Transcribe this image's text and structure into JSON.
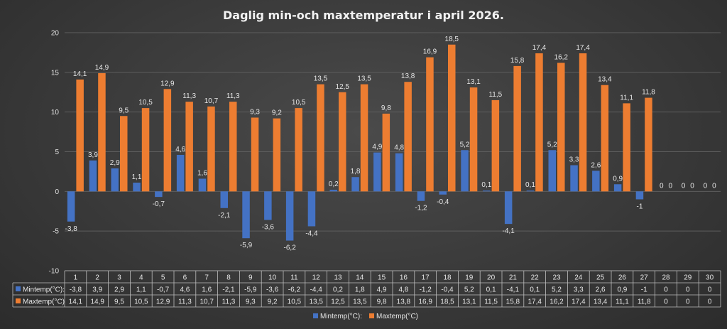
{
  "chart_data": {
    "type": "bar",
    "title": "Daglig min-och maxtemperatur i april 2026.",
    "categories": [
      "1",
      "2",
      "3",
      "4",
      "5",
      "6",
      "7",
      "8",
      "9",
      "10",
      "11",
      "12",
      "13",
      "14",
      "15",
      "16",
      "17",
      "18",
      "19",
      "20",
      "21",
      "22",
      "23",
      "24",
      "25",
      "26",
      "27",
      "28",
      "29",
      "30"
    ],
    "series": [
      {
        "name": "Mintemp(°C):",
        "color": "#4472c4",
        "values": [
          -3.8,
          3.9,
          2.9,
          1.1,
          -0.7,
          4.6,
          1.6,
          -2.1,
          -5.9,
          -3.6,
          -6.2,
          -4.4,
          0.2,
          1.8,
          4.9,
          4.8,
          -1.2,
          -0.4,
          5.2,
          0.1,
          -4.1,
          0.1,
          5.2,
          3.3,
          2.6,
          0.9,
          -1,
          0,
          0,
          0
        ],
        "labels": [
          "-3,8",
          "3,9",
          "2,9",
          "1,1",
          "-0,7",
          "4,6",
          "1,6",
          "-2,1",
          "-5,9",
          "-3,6",
          "-6,2",
          "-4,4",
          "0,2",
          "1,8",
          "4,9",
          "4,8",
          "-1,2",
          "-0,4",
          "5,2",
          "0,1",
          "-4,1",
          "0,1",
          "5,2",
          "3,3",
          "2,6",
          "0,9",
          "-1",
          "0",
          "0",
          "0"
        ]
      },
      {
        "name": "Maxtemp(°C)",
        "color": "#ed7d31",
        "values": [
          14.1,
          14.9,
          9.5,
          10.5,
          12.9,
          11.3,
          10.7,
          11.3,
          9.3,
          9.2,
          10.5,
          13.5,
          12.5,
          13.5,
          9.8,
          13.8,
          16.9,
          18.5,
          13.1,
          11.5,
          15.8,
          17.4,
          16.2,
          17.4,
          13.4,
          11.1,
          11.8,
          0,
          0,
          0
        ],
        "labels": [
          "14,1",
          "14,9",
          "9,5",
          "10,5",
          "12,9",
          "11,3",
          "10,7",
          "11,3",
          "9,3",
          "9,2",
          "10,5",
          "13,5",
          "12,5",
          "13,5",
          "9,8",
          "13,8",
          "16,9",
          "18,5",
          "13,1",
          "11,5",
          "15,8",
          "17,4",
          "16,2",
          "17,4",
          "13,4",
          "11,1",
          "11,8",
          "0",
          "0",
          "0"
        ]
      }
    ],
    "yticks": [
      "-10",
      "-5",
      "0",
      "5",
      "10",
      "15",
      "20"
    ],
    "ylim": [
      -10,
      20
    ],
    "grid": true,
    "legend": "bottom",
    "data_table": true
  }
}
